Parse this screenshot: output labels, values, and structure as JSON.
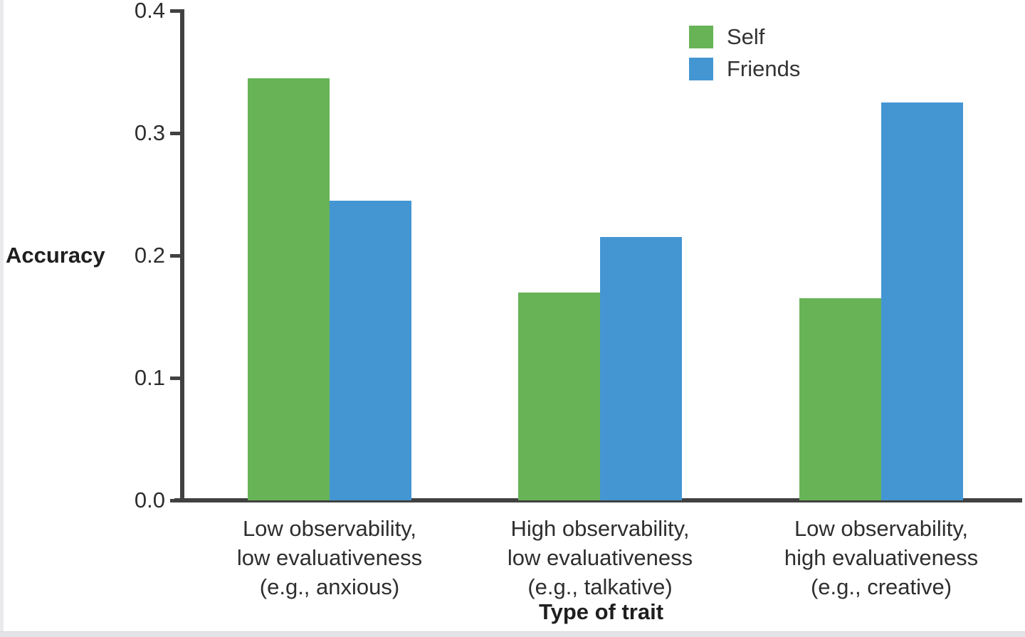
{
  "chart_data": {
    "type": "bar",
    "title": "",
    "ylabel": "Accuracy",
    "xlabel": "Type of trait",
    "ylim": [
      0,
      0.4
    ],
    "yticks": [
      {
        "value": 0.4,
        "label": "0.4"
      },
      {
        "value": 0.3,
        "label": "0.3"
      },
      {
        "value": 0.2,
        "label": "0.2"
      },
      {
        "value": 0.1,
        "label": "0.1"
      },
      {
        "value": 0.0,
        "label": "0.0"
      }
    ],
    "categories": [
      {
        "lines": [
          "Low observability,",
          "low evaluativeness",
          "(e.g., anxious)"
        ]
      },
      {
        "lines": [
          "High observability,",
          "low evaluativeness",
          "(e.g., talkative)"
        ]
      },
      {
        "lines": [
          "Low observability,",
          "high evaluativeness",
          "(e.g., creative)"
        ]
      }
    ],
    "series": [
      {
        "name": "Self",
        "color": "#67b356",
        "values": [
          0.345,
          0.17,
          0.165
        ]
      },
      {
        "name": "Friends",
        "color": "#4496d3",
        "values": [
          0.245,
          0.215,
          0.325
        ]
      }
    ],
    "legend_position": "top-right",
    "grid": false,
    "axis_color": "#414141"
  }
}
